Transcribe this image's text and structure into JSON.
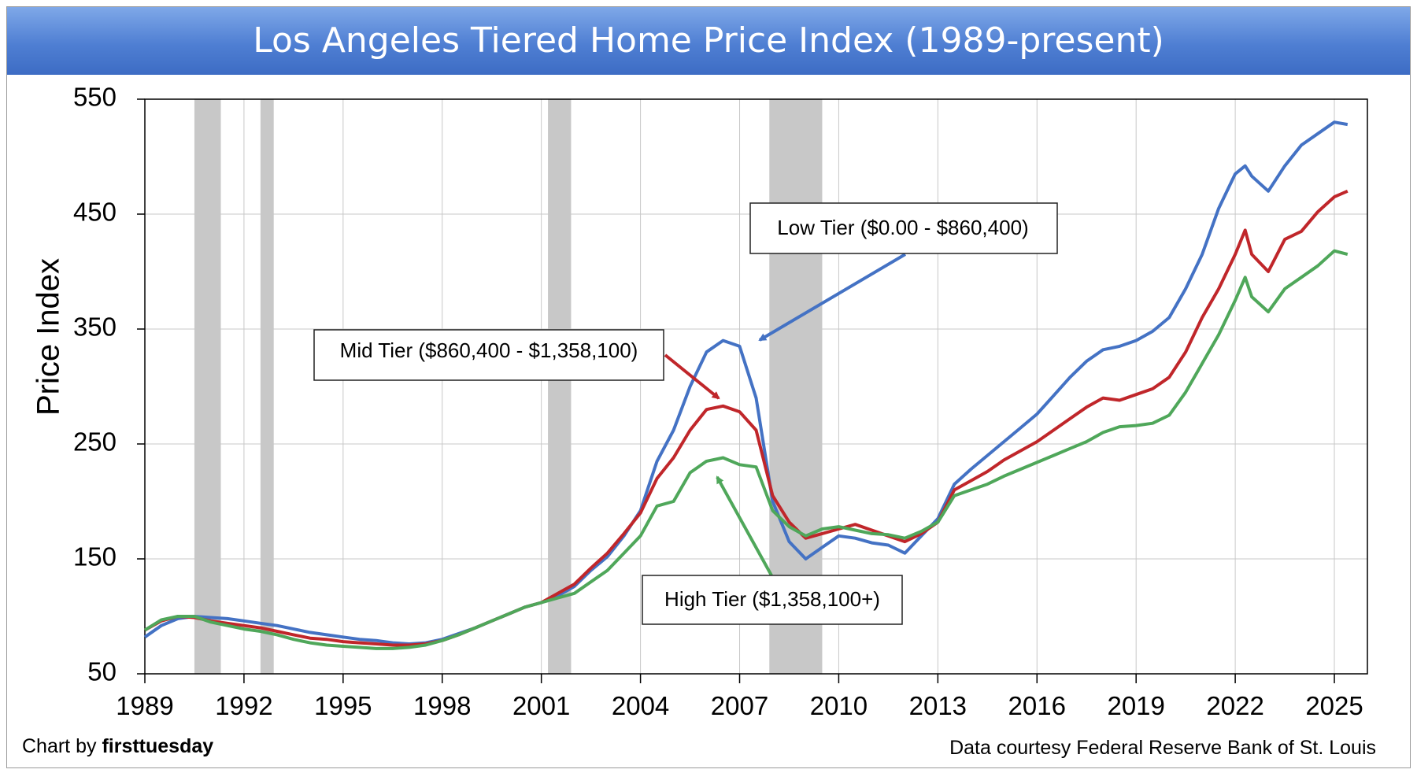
{
  "chart_data": {
    "type": "line",
    "title": "Los Angeles Tiered Home Price Index (1989-present)",
    "ylabel": "Price Index",
    "xlabel": "",
    "xlim": [
      1989,
      2026.0
    ],
    "ylim": [
      50,
      550
    ],
    "y_ticks": [
      50,
      150,
      250,
      350,
      450,
      550
    ],
    "x_ticks": [
      1989,
      1992,
      1995,
      1998,
      2001,
      2004,
      2007,
      2010,
      2013,
      2016,
      2019,
      2022,
      2025
    ],
    "grid": true,
    "recessions": [
      [
        1990.5,
        1991.3
      ],
      [
        1992.5,
        1992.9
      ],
      [
        2001.2,
        2001.9
      ],
      [
        2007.9,
        2009.5
      ]
    ],
    "series": [
      {
        "name": "Low Tier ($0.00 - $860,400)",
        "color": "#4472c4",
        "x": [
          1989,
          1989.5,
          1990,
          1990.5,
          1991,
          1991.5,
          1992,
          1992.5,
          1993,
          1993.5,
          1994,
          1994.5,
          1995,
          1995.5,
          1996,
          1996.5,
          1997,
          1997.5,
          1998,
          1998.5,
          1999,
          1999.5,
          2000,
          2000.5,
          2001,
          2001.5,
          2002,
          2002.5,
          2003,
          2003.5,
          2004,
          2004.5,
          2005,
          2005.5,
          2006,
          2006.5,
          2007,
          2007.5,
          2008,
          2008.5,
          2009,
          2009.5,
          2010,
          2010.5,
          2011,
          2011.5,
          2012,
          2012.5,
          2013,
          2013.5,
          2014,
          2014.5,
          2015,
          2015.5,
          2016,
          2016.5,
          2017,
          2017.5,
          2018,
          2018.5,
          2019,
          2019.5,
          2020,
          2020.5,
          2021,
          2021.5,
          2022,
          2022.3,
          2022.5,
          2023,
          2023.5,
          2024,
          2024.5,
          2025,
          2025.4
        ],
        "values": [
          82,
          92,
          98,
          100,
          99,
          98,
          96,
          94,
          92,
          89,
          86,
          84,
          82,
          80,
          79,
          77,
          76,
          77,
          80,
          85,
          90,
          96,
          102,
          108,
          112,
          118,
          126,
          140,
          152,
          170,
          192,
          235,
          262,
          300,
          330,
          340,
          335,
          290,
          200,
          165,
          150,
          160,
          170,
          168,
          164,
          162,
          155,
          170,
          185,
          215,
          228,
          240,
          252,
          264,
          276,
          292,
          308,
          322,
          332,
          335,
          340,
          348,
          360,
          385,
          415,
          455,
          485,
          492,
          483,
          470,
          492,
          510,
          520,
          530,
          528
        ]
      },
      {
        "name": "Mid Tier ($860,400 - $1,358,100)",
        "color": "#c0262a",
        "x": [
          1989,
          1989.5,
          1990,
          1990.5,
          1991,
          1991.5,
          1992,
          1992.5,
          1993,
          1993.5,
          1994,
          1994.5,
          1995,
          1995.5,
          1996,
          1996.5,
          1997,
          1997.5,
          1998,
          1998.5,
          1999,
          1999.5,
          2000,
          2000.5,
          2001,
          2001.5,
          2002,
          2002.5,
          2003,
          2003.5,
          2004,
          2004.5,
          2005,
          2005.5,
          2006,
          2006.5,
          2007,
          2007.5,
          2008,
          2008.5,
          2009,
          2009.5,
          2010,
          2010.5,
          2011,
          2011.5,
          2012,
          2012.5,
          2013,
          2013.5,
          2014,
          2014.5,
          2015,
          2015.5,
          2016,
          2016.5,
          2017,
          2017.5,
          2018,
          2018.5,
          2019,
          2019.5,
          2020,
          2020.5,
          2021,
          2021.5,
          2022,
          2022.3,
          2022.5,
          2023,
          2023.5,
          2024,
          2024.5,
          2025,
          2025.4
        ],
        "values": [
          88,
          96,
          100,
          99,
          96,
          94,
          92,
          90,
          87,
          84,
          81,
          80,
          78,
          77,
          76,
          75,
          75,
          76,
          79,
          84,
          90,
          96,
          102,
          108,
          112,
          120,
          128,
          142,
          155,
          172,
          190,
          220,
          238,
          262,
          280,
          283,
          278,
          262,
          205,
          182,
          168,
          172,
          176,
          180,
          175,
          170,
          165,
          172,
          182,
          210,
          218,
          226,
          236,
          244,
          252,
          262,
          272,
          282,
          290,
          288,
          293,
          298,
          308,
          330,
          360,
          385,
          415,
          436,
          415,
          400,
          428,
          435,
          452,
          465,
          470
        ]
      },
      {
        "name": "High Tier ($1,358,100+)",
        "color": "#4fa75a",
        "x": [
          1989,
          1989.5,
          1990,
          1990.5,
          1991,
          1991.5,
          1992,
          1992.5,
          1993,
          1993.5,
          1994,
          1994.5,
          1995,
          1995.5,
          1996,
          1996.5,
          1997,
          1997.5,
          1998,
          1998.5,
          1999,
          1999.5,
          2000,
          2000.5,
          2001,
          2001.5,
          2002,
          2002.5,
          2003,
          2003.5,
          2004,
          2004.5,
          2005,
          2005.5,
          2006,
          2006.5,
          2007,
          2007.5,
          2008,
          2008.5,
          2009,
          2009.5,
          2010,
          2010.5,
          2011,
          2011.5,
          2012,
          2012.5,
          2013,
          2013.5,
          2014,
          2014.5,
          2015,
          2015.5,
          2016,
          2016.5,
          2017,
          2017.5,
          2018,
          2018.5,
          2019,
          2019.5,
          2020,
          2020.5,
          2021,
          2021.5,
          2022,
          2022.3,
          2022.5,
          2023,
          2023.5,
          2024,
          2024.5,
          2025,
          2025.4
        ],
        "values": [
          88,
          97,
          100,
          100,
          95,
          92,
          89,
          87,
          84,
          80,
          77,
          75,
          74,
          73,
          72,
          72,
          73,
          75,
          79,
          84,
          90,
          96,
          102,
          108,
          112,
          116,
          120,
          130,
          140,
          155,
          170,
          196,
          200,
          225,
          235,
          238,
          232,
          230,
          192,
          178,
          170,
          176,
          178,
          175,
          172,
          171,
          168,
          174,
          182,
          205,
          210,
          215,
          222,
          228,
          234,
          240,
          246,
          252,
          260,
          265,
          266,
          268,
          275,
          295,
          320,
          345,
          375,
          395,
          378,
          365,
          385,
          395,
          405,
          418,
          415
        ]
      }
    ],
    "annotations": [
      {
        "text": "Low Tier ($0.00 - $860,400)"
      },
      {
        "text": "Mid Tier ($860,400 - $1,358,100)"
      },
      {
        "text": "High Tier ($1,358,100+)"
      }
    ]
  },
  "footer": {
    "credit_prefix": "Chart by",
    "credit_brand": "firsttuesday",
    "source": "Data courtesy Federal Reserve Bank of St. Louis"
  }
}
